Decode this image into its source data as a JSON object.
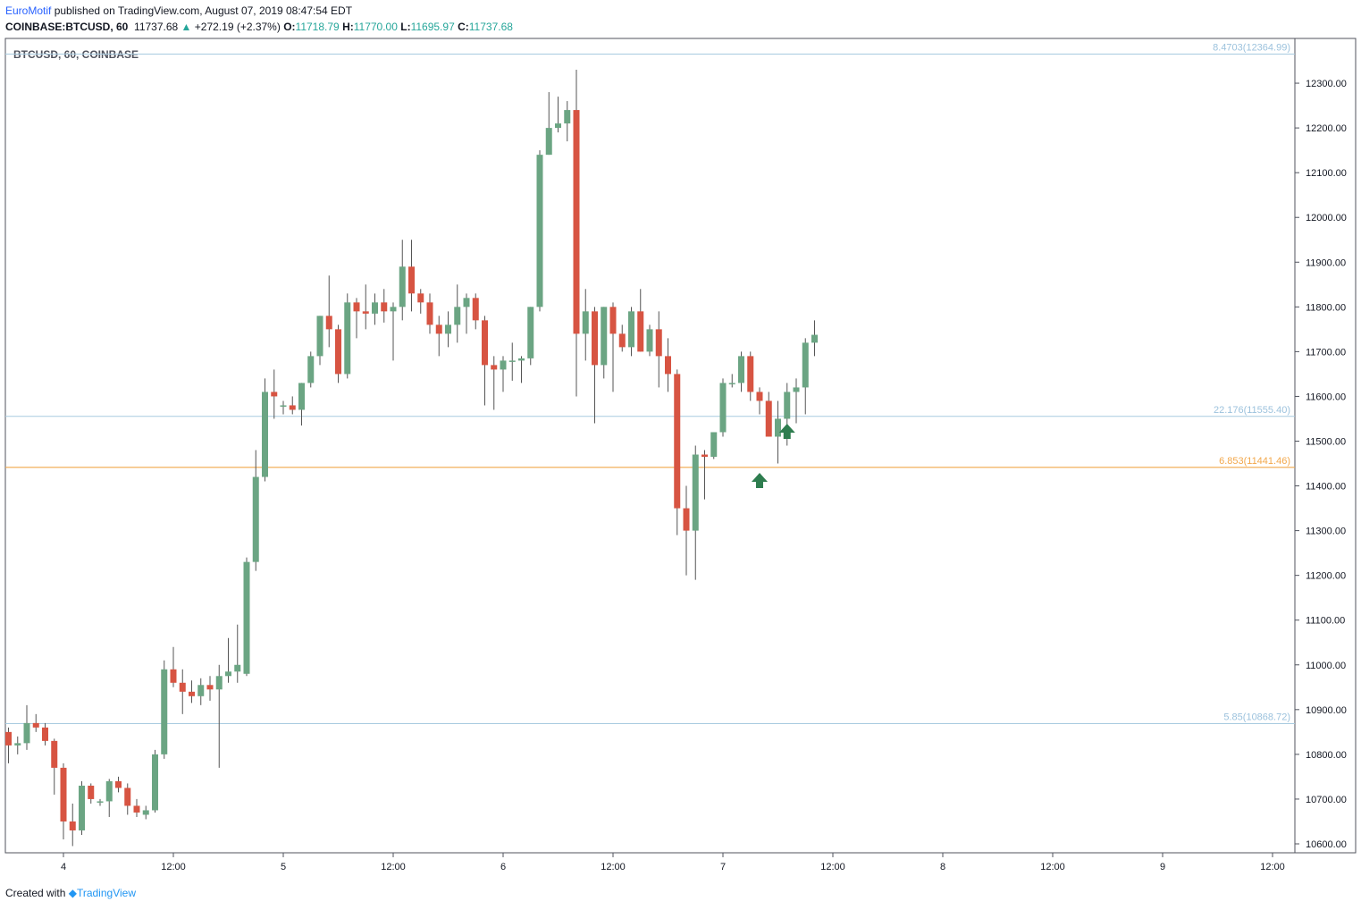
{
  "header": {
    "publisher": "EuroMotif",
    "published_text": "published on TradingView.com, August 07, 2019 08:47:54 EDT",
    "symbol": "COINBASE:BTCUSD, 60",
    "last": "11737.68",
    "change": "+272.19 (+2.37%)",
    "o_label": "O:",
    "o_value": "11718.79",
    "h_label": "H:",
    "h_value": "11770.00",
    "l_label": "L:",
    "l_value": "11695.97",
    "c_label": "C:",
    "c_value": "11737.68"
  },
  "footer": {
    "created_with": "Created with",
    "brand": "TradingView"
  },
  "colors": {
    "up": "#6ba583",
    "down": "#d75442",
    "fib": "#a8cbe0",
    "fib_label": "#9cc2dd",
    "support": "#f2a74a",
    "arrow": "#2e7d4f"
  },
  "chart_data": {
    "type": "candlestick",
    "title": "BTCUSD, 60, COINBASE",
    "ylim": [
      10580,
      12400
    ],
    "yticks": [
      "12300.00",
      "12200.00",
      "12100.00",
      "12000.00",
      "11900.00",
      "11800.00",
      "11700.00",
      "11600.00",
      "11500.00",
      "11400.00",
      "11300.00",
      "11200.00",
      "11100.00",
      "11000.00",
      "10900.00",
      "10800.00",
      "10700.00",
      "10600.00"
    ],
    "xticks": [
      {
        "label": "4",
        "i": 6
      },
      {
        "label": "12:00",
        "i": 18
      },
      {
        "label": "5",
        "i": 30
      },
      {
        "label": "12:00",
        "i": 42
      },
      {
        "label": "6",
        "i": 54
      },
      {
        "label": "12:00",
        "i": 66
      },
      {
        "label": "7",
        "i": 78
      },
      {
        "label": "12:00",
        "i": 90
      },
      {
        "label": "8",
        "i": 102
      },
      {
        "label": "12:00",
        "i": 114
      },
      {
        "label": "9",
        "i": 126
      },
      {
        "label": "12:00",
        "i": 138
      }
    ],
    "fib_lines": [
      {
        "label": "8.4703(12364.99)",
        "value": 12364.99
      },
      {
        "label": "22.176(11555.40)",
        "value": 11555.4
      },
      {
        "label": "5.85(10868.72)",
        "value": 10868.72
      }
    ],
    "support_line": {
      "label": "6.853(11441.46)",
      "value": 11441.46
    },
    "arrows_at": [
      82,
      85
    ],
    "candles": [
      [
        10850,
        10860,
        10780,
        10820
      ],
      [
        10820,
        10840,
        10800,
        10825
      ],
      [
        10825,
        10910,
        10810,
        10870
      ],
      [
        10870,
        10890,
        10850,
        10860
      ],
      [
        10860,
        10870,
        10820,
        10830
      ],
      [
        10830,
        10835,
        10710,
        10770
      ],
      [
        10770,
        10780,
        10610,
        10650
      ],
      [
        10650,
        10690,
        10595,
        10630
      ],
      [
        10630,
        10740,
        10620,
        10730
      ],
      [
        10730,
        10735,
        10690,
        10700
      ],
      [
        10695,
        10700,
        10685,
        10695
      ],
      [
        10695,
        10745,
        10660,
        10740
      ],
      [
        10740,
        10750,
        10715,
        10725
      ],
      [
        10725,
        10735,
        10665,
        10685
      ],
      [
        10685,
        10700,
        10660,
        10670
      ],
      [
        10665,
        10685,
        10655,
        10675
      ],
      [
        10675,
        10810,
        10670,
        10800
      ],
      [
        10800,
        11010,
        10790,
        10990
      ],
      [
        10990,
        11040,
        10950,
        10960
      ],
      [
        10960,
        10990,
        10890,
        10940
      ],
      [
        10940,
        10965,
        10915,
        10930
      ],
      [
        10930,
        10970,
        10910,
        10955
      ],
      [
        10955,
        10975,
        10920,
        10945
      ],
      [
        10945,
        11000,
        10770,
        10975
      ],
      [
        10975,
        11060,
        10960,
        10985
      ],
      [
        10985,
        11090,
        10960,
        11000
      ],
      [
        10980,
        11240,
        10975,
        11230
      ],
      [
        11230,
        11480,
        11210,
        11420
      ],
      [
        11420,
        11640,
        11410,
        11610
      ],
      [
        11610,
        11660,
        11550,
        11600
      ],
      [
        11580,
        11590,
        11560,
        11580
      ],
      [
        11580,
        11600,
        11560,
        11570
      ],
      [
        11570,
        11630,
        11535,
        11630
      ],
      [
        11630,
        11700,
        11620,
        11690
      ],
      [
        11690,
        11780,
        11670,
        11780
      ],
      [
        11780,
        11870,
        11710,
        11750
      ],
      [
        11750,
        11760,
        11630,
        11650
      ],
      [
        11650,
        11830,
        11640,
        11810
      ],
      [
        11810,
        11820,
        11730,
        11790
      ],
      [
        11790,
        11850,
        11750,
        11785
      ],
      [
        11785,
        11830,
        11760,
        11810
      ],
      [
        11810,
        11840,
        11765,
        11790
      ],
      [
        11790,
        11810,
        11680,
        11800
      ],
      [
        11800,
        11950,
        11770,
        11890
      ],
      [
        11890,
        11950,
        11790,
        11830
      ],
      [
        11830,
        11840,
        11785,
        11810
      ],
      [
        11810,
        11830,
        11740,
        11760
      ],
      [
        11760,
        11780,
        11690,
        11740
      ],
      [
        11740,
        11790,
        11710,
        11760
      ],
      [
        11760,
        11850,
        11720,
        11800
      ],
      [
        11800,
        11830,
        11740,
        11820
      ],
      [
        11820,
        11830,
        11750,
        11770
      ],
      [
        11770,
        11780,
        11580,
        11670
      ],
      [
        11670,
        11690,
        11570,
        11660
      ],
      [
        11660,
        11690,
        11610,
        11680
      ],
      [
        11680,
        11720,
        11635,
        11680
      ],
      [
        11680,
        11690,
        11630,
        11685
      ],
      [
        11685,
        11800,
        11670,
        11800
      ],
      [
        11800,
        12150,
        11790,
        12140
      ],
      [
        12140,
        12280,
        12140,
        12200
      ],
      [
        12200,
        12270,
        12190,
        12210
      ],
      [
        12210,
        12260,
        12170,
        12240
      ],
      [
        12240,
        12330,
        11600,
        11740
      ],
      [
        11740,
        11840,
        11680,
        11790
      ],
      [
        11790,
        11800,
        11540,
        11670
      ],
      [
        11670,
        11800,
        11640,
        11800
      ],
      [
        11800,
        11810,
        11610,
        11740
      ],
      [
        11740,
        11760,
        11700,
        11710
      ],
      [
        11710,
        11800,
        11690,
        11790
      ],
      [
        11790,
        11840,
        11700,
        11700
      ],
      [
        11700,
        11760,
        11690,
        11750
      ],
      [
        11750,
        11790,
        11620,
        11690
      ],
      [
        11690,
        11730,
        11610,
        11650
      ],
      [
        11650,
        11660,
        11290,
        11350
      ],
      [
        11350,
        11400,
        11200,
        11300
      ],
      [
        11300,
        11490,
        11190,
        11470
      ],
      [
        11470,
        11480,
        11370,
        11465
      ],
      [
        11465,
        11520,
        11460,
        11520
      ],
      [
        11520,
        11640,
        11510,
        11630
      ],
      [
        11630,
        11650,
        11620,
        11630
      ],
      [
        11630,
        11700,
        11610,
        11690
      ],
      [
        11690,
        11700,
        11590,
        11610
      ],
      [
        11610,
        11620,
        11560,
        11590
      ],
      [
        11590,
        11610,
        11510,
        11510
      ],
      [
        11510,
        11590,
        11450,
        11550
      ],
      [
        11550,
        11630,
        11490,
        11610
      ],
      [
        11610,
        11640,
        11540,
        11620
      ],
      [
        11620,
        11730,
        11560,
        11720
      ],
      [
        11720,
        11770,
        11690,
        11737.68
      ]
    ]
  }
}
